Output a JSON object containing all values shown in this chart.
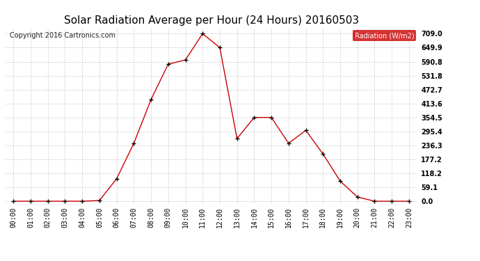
{
  "title": "Solar Radiation Average per Hour (24 Hours) 20160503",
  "copyright_text": "Copyright 2016 Cartronics.com",
  "legend_label": "Radiation (W/m2)",
  "hours": [
    "00:00",
    "01:00",
    "02:00",
    "03:00",
    "04:00",
    "05:00",
    "06:00",
    "07:00",
    "08:00",
    "09:00",
    "10:00",
    "11:00",
    "12:00",
    "13:00",
    "14:00",
    "15:00",
    "16:00",
    "17:00",
    "18:00",
    "19:00",
    "20:00",
    "21:00",
    "22:00",
    "23:00"
  ],
  "values": [
    0.0,
    0.0,
    0.0,
    0.0,
    0.0,
    3.0,
    95.0,
    245.0,
    430.0,
    580.0,
    598.0,
    709.0,
    649.9,
    265.0,
    354.5,
    354.5,
    245.0,
    300.0,
    200.0,
    85.0,
    18.0,
    0.0,
    0.0,
    0.0
  ],
  "yticks": [
    0.0,
    59.1,
    118.2,
    177.2,
    236.3,
    295.4,
    354.5,
    413.6,
    472.7,
    531.8,
    590.8,
    649.9,
    709.0
  ],
  "yticklabels": [
    "0.0",
    "59.1",
    "118.2",
    "177.2",
    "236.3",
    "295.4",
    "354.5",
    "413.6",
    "472.7",
    "531.8",
    "590.8",
    "649.9",
    "709.0"
  ],
  "line_color": "#cc0000",
  "marker_color": "#000000",
  "bg_color": "#ffffff",
  "grid_color": "#cccccc",
  "title_fontsize": 11,
  "copyright_fontsize": 7,
  "tick_fontsize": 7,
  "legend_bg": "#cc0000",
  "legend_text_color": "#ffffff",
  "legend_fontsize": 7,
  "ylim_min": -10,
  "ylim_max": 730
}
